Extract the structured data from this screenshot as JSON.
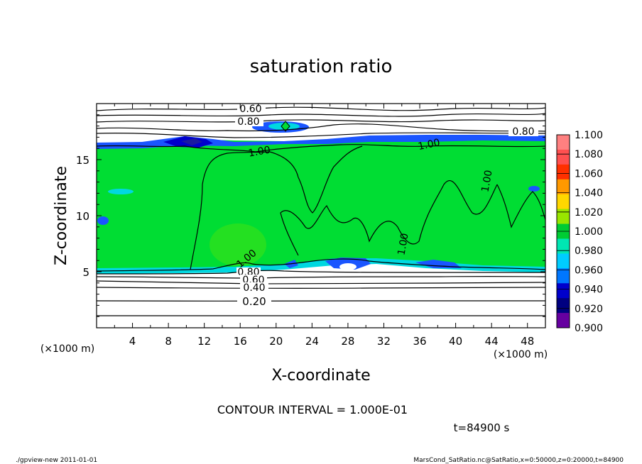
{
  "chart_data": {
    "type": "heatmap",
    "title": "saturation ratio",
    "xlabel": "X-coordinate",
    "ylabel": "Z-coordinate",
    "x_unit": "(×1000 m)",
    "y_unit": "(×1000 m)",
    "xlim": [
      0,
      50
    ],
    "ylim": [
      0,
      20
    ],
    "xticks": [
      "4",
      "8",
      "12",
      "16",
      "20",
      "24",
      "28",
      "32",
      "36",
      "40",
      "44",
      "48"
    ],
    "yticks": [
      "5",
      "10",
      "15"
    ],
    "colorbar": {
      "levels": [
        "1.100",
        "1.080",
        "1.060",
        "1.040",
        "1.020",
        "1.000",
        "0.980",
        "0.960",
        "0.940",
        "0.920",
        "0.900"
      ],
      "colors": [
        "#ff8080",
        "#ff5050",
        "#ff3000",
        "#ff9900",
        "#ffd700",
        "#99e600",
        "#00cc33",
        "#00e6b3",
        "#00ccff",
        "#0077ff",
        "#0000cc",
        "#000080",
        "#6600a0"
      ]
    },
    "contour_labels": [
      "0.60",
      "0.80",
      "0.80",
      "1.00",
      "1.00",
      "1.00",
      "1.00",
      "1.00",
      "0.80",
      "0.60",
      "0.40",
      "0.20"
    ],
    "contour_interval": "CONTOUR INTERVAL = 1.000E-01",
    "time": "t=84900 s"
  },
  "footer": {
    "left": "./gpview-new  2011-01-01",
    "right": "MarsCond_SatRatio.nc@SatRatio,x=0:50000,z=0:20000,t=84900"
  },
  "colors": {
    "field_green": "#00dd33",
    "dry_blue": "#1a55ff",
    "deep_blue": "#0000cc",
    "cyan": "#00d8e0",
    "frame": "#000000"
  }
}
